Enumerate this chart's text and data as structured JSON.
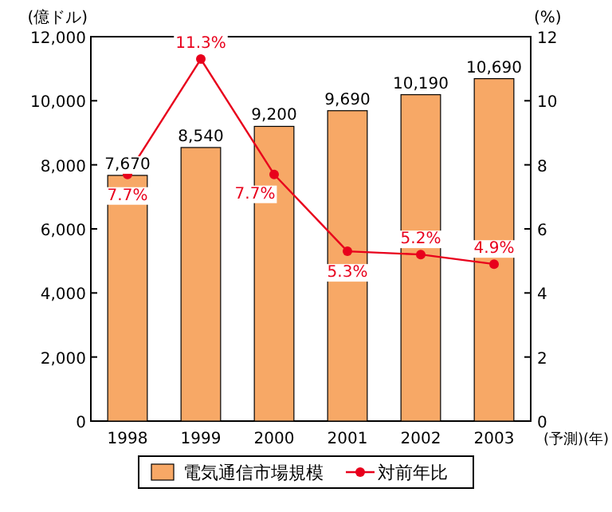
{
  "chart_data": {
    "type": "bar",
    "categories": [
      "1998",
      "1999",
      "2000",
      "2001",
      "2002",
      "2003"
    ],
    "xlabel": "(予測)(年)",
    "ylabel": "(億ドル)",
    "y2label": "(%)",
    "ylim": [
      0,
      12000
    ],
    "yticks": [
      0,
      {
        "value": 2000,
        "label": "2,000"
      },
      {
        "value": 4000,
        "label": "4,000"
      },
      {
        "value": 6000,
        "label": "6,000"
      },
      {
        "value": 8000,
        "label": "8,000"
      },
      {
        "value": 10000,
        "label": "10,000"
      },
      {
        "value": 12000,
        "label": "12,000"
      }
    ],
    "y2lim": [
      0,
      12
    ],
    "y2ticks": [
      0,
      2,
      4,
      6,
      8,
      10,
      12
    ],
    "series": [
      {
        "name": "電気通信市場規模",
        "color": "#f7a866",
        "values": [
          7670,
          8540,
          9200,
          9690,
          10190,
          10690
        ],
        "value_labels": [
          "7,670",
          "8,540",
          "9,200",
          "9,690",
          "10,190",
          "10,690"
        ]
      },
      {
        "type": "line",
        "name": "対前年比",
        "color": "#e8001c",
        "axis": "y2",
        "marker": "circle",
        "values": [
          7.7,
          11.3,
          7.7,
          5.3,
          5.2,
          4.9
        ],
        "value_labels": [
          "7.7%",
          "11.3%",
          "7.7%",
          "5.3%",
          "5.2%",
          "4.9%"
        ]
      }
    ],
    "legend": "bottom"
  }
}
